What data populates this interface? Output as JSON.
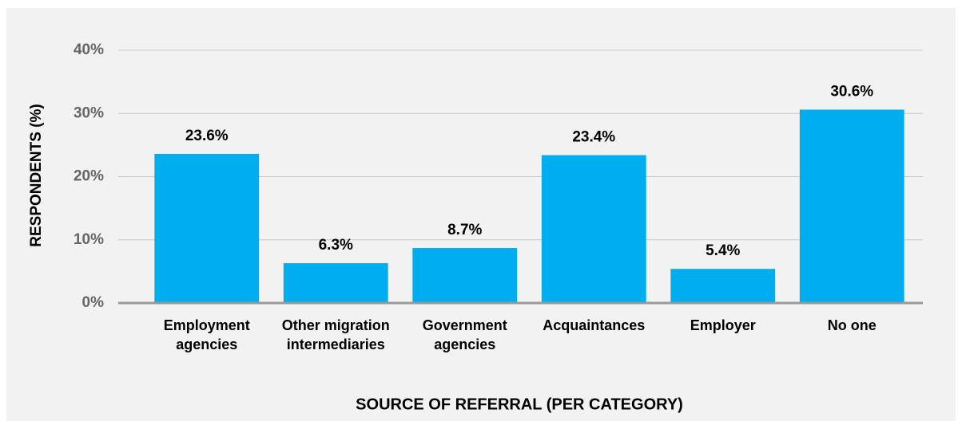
{
  "chart_data": {
    "type": "bar",
    "x_label": "SOURCE OF REFERRAL (PER CATEGORY)",
    "y_label": "RESPONDENTS (%)",
    "categories": [
      "Employment agencies",
      "Other migration intermediaries",
      "Government agencies",
      "Acquaintances",
      "Employer",
      "No one"
    ],
    "values": [
      23.6,
      6.3,
      8.7,
      23.4,
      5.4,
      30.6
    ],
    "value_labels": [
      "23.6%",
      "6.3%",
      "8.7%",
      "23.4%",
      "5.4%",
      "30.6%"
    ],
    "color": "#00aeef",
    "ylim": [
      0,
      40
    ],
    "yticks": [
      {
        "value": 0,
        "label": "0%"
      },
      {
        "value": 10,
        "label": "10%"
      },
      {
        "value": 20,
        "label": "20%"
      },
      {
        "value": 30,
        "label": "30%"
      },
      {
        "value": 40,
        "label": "40%"
      }
    ],
    "grid": true
  }
}
